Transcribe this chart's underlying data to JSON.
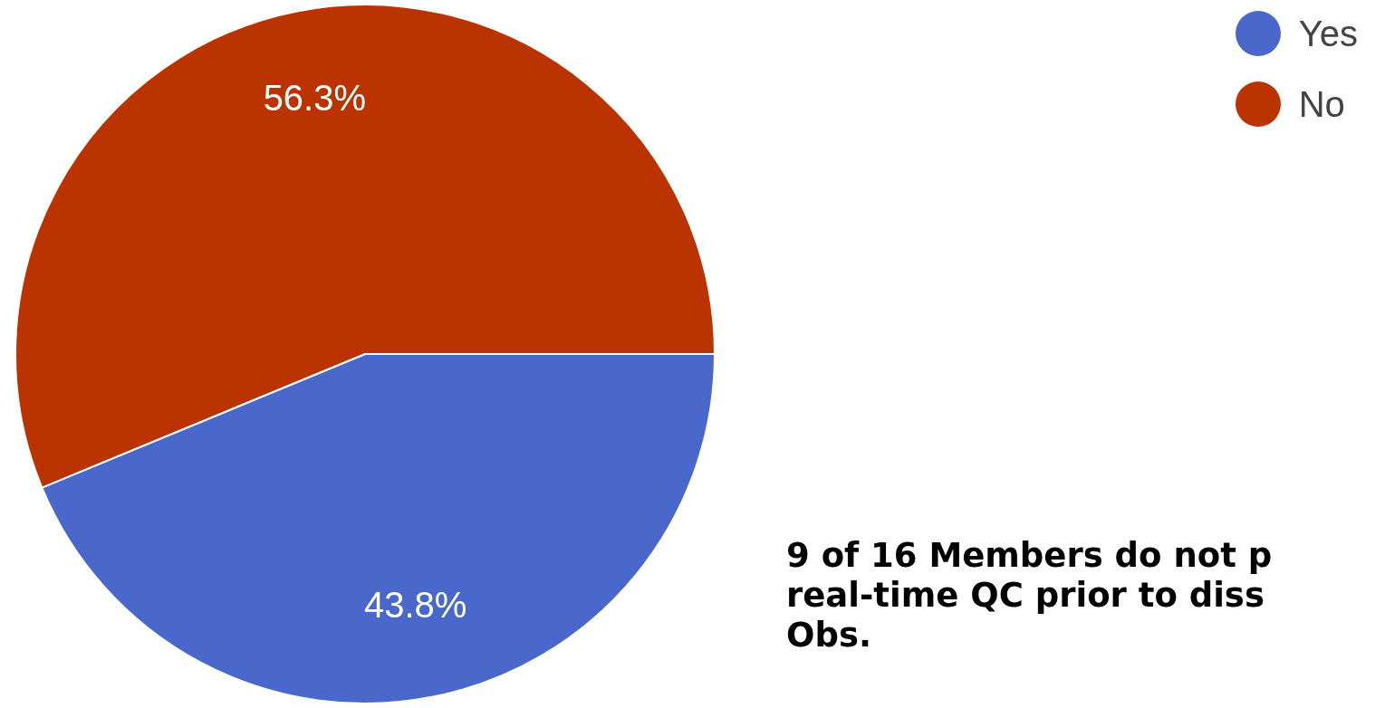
{
  "chart_data": {
    "type": "pie",
    "categories": [
      "Yes",
      "No"
    ],
    "values": [
      43.8,
      56.3
    ],
    "colors": [
      "#4a68cc",
      "#ba3300"
    ],
    "value_labels": [
      "43.8%",
      "56.3%"
    ],
    "legend": "top right",
    "annotations": [
      "9 of 16 Members do not p\nreal-time QC prior to diss\nObs."
    ]
  }
}
